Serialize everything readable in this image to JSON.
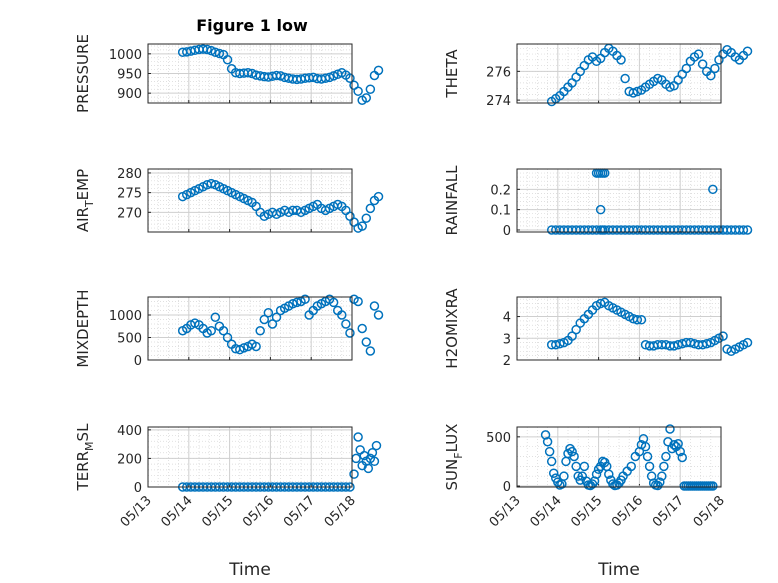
{
  "figure": {
    "title": "Figure 1 low"
  },
  "colors": {
    "marker": "#0072BD",
    "axes": "#262626",
    "grid": "#cfcfcf"
  },
  "chart_data": [
    {
      "type": "scatter",
      "xlabel": "",
      "ylabel": "PRESSURE",
      "xlim": [
        "05/13",
        "05/18"
      ],
      "ylim": [
        875,
        1025
      ],
      "yticks": [
        900,
        950,
        1000
      ],
      "x": [
        0.85,
        0.95,
        1.05,
        1.15,
        1.25,
        1.35,
        1.45,
        1.55,
        1.65,
        1.75,
        1.85,
        1.95,
        2.05,
        2.15,
        2.25,
        2.35,
        2.45,
        2.55,
        2.65,
        2.75,
        2.85,
        2.95,
        3.05,
        3.15,
        3.25,
        3.35,
        3.45,
        3.55,
        3.65,
        3.75,
        3.85,
        3.95,
        4.05,
        4.15,
        4.25,
        4.35,
        4.45,
        4.55,
        4.65,
        4.75,
        4.85,
        4.95,
        5.05,
        5.15,
        5.25,
        5.35,
        5.45,
        5.55,
        5.65
      ],
      "y": [
        1004,
        1005,
        1007,
        1009,
        1011,
        1012,
        1011,
        1008,
        1004,
        1001,
        998,
        985,
        962,
        952,
        950,
        951,
        952,
        950,
        946,
        944,
        942,
        941,
        943,
        945,
        944,
        940,
        938,
        936,
        935,
        936,
        938,
        939,
        940,
        937,
        936,
        938,
        940,
        944,
        948,
        952,
        946,
        938,
        920,
        905,
        882,
        888,
        910,
        945,
        958
      ],
      "grid": true,
      "legend": "none"
    },
    {
      "type": "scatter",
      "xlabel": "",
      "ylabel": "THETA",
      "xlim": [
        "05/13",
        "05/18"
      ],
      "ylim": [
        273.8,
        277.9
      ],
      "yticks": [
        274,
        276
      ],
      "x": [
        0.85,
        0.95,
        1.05,
        1.15,
        1.25,
        1.35,
        1.45,
        1.55,
        1.65,
        1.75,
        1.85,
        1.95,
        2.05,
        2.15,
        2.25,
        2.35,
        2.45,
        2.55,
        2.65,
        2.75,
        2.85,
        2.95,
        3.05,
        3.15,
        3.25,
        3.35,
        3.45,
        3.55,
        3.65,
        3.75,
        3.85,
        3.95,
        4.05,
        4.15,
        4.25,
        4.35,
        4.45,
        4.55,
        4.65,
        4.75,
        4.85,
        4.95,
        5.05,
        5.15,
        5.25,
        5.35,
        5.45,
        5.55,
        5.65
      ],
      "y": [
        273.9,
        274.1,
        274.3,
        274.6,
        274.9,
        275.2,
        275.6,
        276.0,
        276.4,
        276.8,
        277.0,
        276.7,
        276.9,
        277.3,
        277.6,
        277.4,
        277.1,
        276.8,
        275.5,
        274.6,
        274.5,
        274.6,
        274.7,
        274.9,
        275.1,
        275.3,
        275.5,
        275.4,
        275.1,
        274.9,
        275.0,
        275.4,
        275.8,
        276.2,
        276.7,
        277.0,
        277.2,
        276.5,
        276.0,
        275.7,
        276.2,
        276.8,
        277.2,
        277.5,
        277.3,
        277.0,
        276.8,
        277.1,
        277.4
      ],
      "grid": true,
      "legend": "none"
    },
    {
      "type": "scatter",
      "xlabel": "",
      "ylabel": "AIR_TEMP",
      "ylabel_parts": {
        "a": "AIR",
        "sub": "T",
        "b": "EMP"
      },
      "xlim": [
        "05/13",
        "05/18"
      ],
      "ylim": [
        265,
        281
      ],
      "yticks": [
        270,
        275,
        280
      ],
      "x": [
        0.85,
        0.95,
        1.05,
        1.15,
        1.25,
        1.35,
        1.45,
        1.55,
        1.65,
        1.75,
        1.85,
        1.95,
        2.05,
        2.15,
        2.25,
        2.35,
        2.45,
        2.55,
        2.65,
        2.75,
        2.85,
        2.95,
        3.05,
        3.15,
        3.25,
        3.35,
        3.45,
        3.55,
        3.65,
        3.75,
        3.85,
        3.95,
        4.05,
        4.15,
        4.25,
        4.35,
        4.45,
        4.55,
        4.65,
        4.75,
        4.85,
        4.95,
        5.05,
        5.15,
        5.25,
        5.35,
        5.45,
        5.55,
        5.65
      ],
      "y": [
        274.0,
        274.5,
        275.0,
        275.5,
        276.0,
        276.5,
        277.0,
        277.3,
        277.0,
        276.5,
        276.0,
        275.5,
        275.0,
        274.5,
        274.0,
        273.5,
        273.0,
        272.5,
        271.5,
        270.0,
        269.0,
        269.5,
        270.0,
        269.5,
        270.0,
        270.5,
        270.0,
        270.5,
        270.5,
        270.0,
        270.5,
        271.0,
        271.5,
        272.0,
        271.0,
        270.5,
        271.0,
        271.5,
        272.0,
        271.5,
        270.5,
        269.0,
        267.5,
        266.0,
        266.5,
        268.5,
        271.0,
        273.0,
        274.0
      ],
      "grid": true,
      "legend": "none"
    },
    {
      "type": "scatter",
      "xlabel": "",
      "ylabel": "RAINFALL",
      "xlim": [
        "05/13",
        "05/18"
      ],
      "ylim": [
        -0.01,
        0.3
      ],
      "yticks": [
        0,
        0.1,
        0.2
      ],
      "x": [
        0.85,
        0.95,
        1.05,
        1.15,
        1.25,
        1.35,
        1.45,
        1.55,
        1.65,
        1.75,
        1.85,
        1.95,
        2.05,
        2.15,
        2.25,
        2.35,
        2.45,
        2.55,
        2.65,
        2.75,
        2.85,
        2.95,
        3.05,
        3.15,
        3.25,
        3.35,
        3.45,
        3.55,
        3.65,
        3.75,
        3.85,
        3.95,
        4.05,
        4.15,
        4.25,
        4.35,
        4.45,
        4.55,
        4.65,
        4.75,
        4.85,
        4.95,
        5.05,
        5.15,
        5.25,
        5.35,
        5.45,
        5.55,
        5.65,
        1.95,
        2.0,
        2.05,
        2.1,
        2.15,
        2.05,
        2.1,
        4.8
      ],
      "y": [
        0,
        0,
        0,
        0,
        0,
        0,
        0,
        0,
        0,
        0,
        0,
        0,
        0,
        0,
        0,
        0,
        0,
        0,
        0,
        0,
        0,
        0,
        0,
        0,
        0,
        0,
        0,
        0,
        0,
        0,
        0,
        0,
        0,
        0,
        0,
        0,
        0,
        0,
        0,
        0,
        0,
        0,
        0,
        0,
        0,
        0,
        0,
        0,
        0,
        0.28,
        0.28,
        0.28,
        0.28,
        0.28,
        0.1,
        0,
        0.2
      ],
      "grid": true,
      "legend": "none"
    },
    {
      "type": "scatter",
      "xlabel": "",
      "ylabel": "MIXDEPTH",
      "xlim": [
        "05/13",
        "05/18"
      ],
      "ylim": [
        0,
        1400
      ],
      "yticks": [
        0,
        500,
        1000
      ],
      "x": [
        0.85,
        0.95,
        1.05,
        1.15,
        1.25,
        1.35,
        1.45,
        1.55,
        1.65,
        1.75,
        1.85,
        1.95,
        2.05,
        2.15,
        2.25,
        2.35,
        2.45,
        2.55,
        2.65,
        2.75,
        2.85,
        2.95,
        3.05,
        3.15,
        3.25,
        3.35,
        3.45,
        3.55,
        3.65,
        3.75,
        3.85,
        3.95,
        4.05,
        4.15,
        4.25,
        4.35,
        4.45,
        4.55,
        4.65,
        4.75,
        4.85,
        4.95,
        5.05,
        5.15,
        5.25,
        5.35,
        5.45,
        5.55,
        5.65
      ],
      "y": [
        650,
        700,
        780,
        820,
        780,
        700,
        600,
        650,
        950,
        750,
        650,
        500,
        350,
        250,
        230,
        270,
        300,
        350,
        300,
        650,
        900,
        1050,
        800,
        950,
        1100,
        1150,
        1200,
        1250,
        1280,
        1300,
        1350,
        1000,
        1100,
        1200,
        1250,
        1300,
        1350,
        1280,
        1100,
        1000,
        800,
        600,
        1350,
        1300,
        700,
        400,
        200,
        1200,
        1000
      ],
      "grid": true,
      "legend": "none"
    },
    {
      "type": "scatter",
      "xlabel": "",
      "ylabel": "H2OMIXRA",
      "xlim": [
        "05/13",
        "05/18"
      ],
      "ylim": [
        2,
        4.9
      ],
      "yticks": [
        2,
        3,
        4
      ],
      "x": [
        0.85,
        0.95,
        1.05,
        1.15,
        1.25,
        1.35,
        1.45,
        1.55,
        1.65,
        1.75,
        1.85,
        1.95,
        2.05,
        2.15,
        2.25,
        2.35,
        2.45,
        2.55,
        2.65,
        2.75,
        2.85,
        2.95,
        3.05,
        3.15,
        3.25,
        3.35,
        3.45,
        3.55,
        3.65,
        3.75,
        3.85,
        3.95,
        4.05,
        4.15,
        4.25,
        4.35,
        4.45,
        4.55,
        4.65,
        4.75,
        4.85,
        4.95,
        5.05,
        5.15,
        5.25,
        5.35,
        5.45,
        5.55,
        5.65
      ],
      "y": [
        2.7,
        2.7,
        2.75,
        2.8,
        2.9,
        3.1,
        3.4,
        3.7,
        3.9,
        4.1,
        4.3,
        4.5,
        4.6,
        4.65,
        4.5,
        4.4,
        4.3,
        4.2,
        4.1,
        4.0,
        3.9,
        3.85,
        3.85,
        2.7,
        2.65,
        2.65,
        2.7,
        2.7,
        2.7,
        2.65,
        2.65,
        2.7,
        2.75,
        2.8,
        2.8,
        2.75,
        2.7,
        2.7,
        2.75,
        2.8,
        2.9,
        3.0,
        3.1,
        2.5,
        2.4,
        2.5,
        2.6,
        2.7,
        2.8
      ],
      "grid": true,
      "legend": "none"
    },
    {
      "type": "scatter",
      "xlabel": "Time",
      "ylabel": "TERR_MSL",
      "ylabel_parts": {
        "a": "TERR",
        "sub": "M",
        "b": "SL"
      },
      "xlim": [
        "05/13",
        "05/18"
      ],
      "ylim": [
        0,
        420
      ],
      "yticks": [
        0,
        200,
        400
      ],
      "xticks": [
        "05/13",
        "05/14",
        "05/15",
        "05/16",
        "05/17",
        "05/18"
      ],
      "x": [
        0.85,
        0.95,
        1.05,
        1.15,
        1.25,
        1.35,
        1.45,
        1.55,
        1.65,
        1.75,
        1.85,
        1.95,
        2.05,
        2.15,
        2.25,
        2.35,
        2.45,
        2.55,
        2.65,
        2.75,
        2.85,
        2.95,
        3.05,
        3.15,
        3.25,
        3.35,
        3.45,
        3.55,
        3.65,
        3.75,
        3.85,
        3.95,
        4.05,
        4.15,
        4.25,
        4.35,
        4.45,
        4.55,
        4.65,
        4.75,
        4.85,
        4.95,
        5.05,
        5.1,
        5.15,
        5.2,
        5.25,
        5.3,
        5.35,
        5.4,
        5.45,
        5.5,
        5.55,
        5.6
      ],
      "y": [
        0,
        0,
        0,
        0,
        0,
        0,
        0,
        0,
        0,
        0,
        0,
        0,
        0,
        0,
        0,
        0,
        0,
        0,
        0,
        0,
        0,
        0,
        0,
        0,
        0,
        0,
        0,
        0,
        0,
        0,
        0,
        0,
        0,
        0,
        0,
        0,
        0,
        0,
        0,
        0,
        0,
        0,
        90,
        200,
        350,
        260,
        150,
        220,
        180,
        130,
        200,
        240,
        180,
        290
      ],
      "grid": true,
      "legend": "none"
    },
    {
      "type": "scatter",
      "xlabel": "Time",
      "ylabel": "SUN_FLUX",
      "ylabel_parts": {
        "a": "SUN",
        "sub": "F",
        "b": "LUX"
      },
      "xlim": [
        "05/13",
        "05/18"
      ],
      "ylim": [
        -10,
        600
      ],
      "yticks": [
        0,
        500
      ],
      "xticks": [
        "05/13",
        "05/14",
        "05/15",
        "05/16",
        "05/17",
        "05/18"
      ],
      "x": [
        0.7,
        0.75,
        0.8,
        0.85,
        0.9,
        0.95,
        1.0,
        1.05,
        1.1,
        1.15,
        1.2,
        1.25,
        1.3,
        1.35,
        1.4,
        1.45,
        1.5,
        1.55,
        1.6,
        1.65,
        1.7,
        1.75,
        1.8,
        1.85,
        1.9,
        1.95,
        2.0,
        2.05,
        2.1,
        2.15,
        2.2,
        2.25,
        2.3,
        2.35,
        2.4,
        2.45,
        2.5,
        2.55,
        2.6,
        2.7,
        2.8,
        2.9,
        3.0,
        3.05,
        3.1,
        3.15,
        3.2,
        3.25,
        3.3,
        3.35,
        3.4,
        3.45,
        3.5,
        3.55,
        3.6,
        3.65,
        3.7,
        3.75,
        3.8,
        3.85,
        3.9,
        3.95,
        4.0,
        4.05,
        4.1,
        4.15,
        4.2,
        4.25,
        4.3,
        4.35,
        4.4,
        4.45,
        4.5,
        4.55,
        4.6,
        4.65,
        4.7,
        4.75,
        4.8
      ],
      "y": [
        520,
        450,
        350,
        250,
        130,
        80,
        40,
        10,
        20,
        100,
        250,
        330,
        380,
        350,
        300,
        200,
        100,
        60,
        100,
        200,
        50,
        10,
        5,
        20,
        50,
        120,
        170,
        200,
        250,
        240,
        200,
        120,
        60,
        20,
        5,
        10,
        30,
        60,
        100,
        150,
        200,
        300,
        350,
        420,
        480,
        400,
        300,
        200,
        100,
        30,
        10,
        5,
        40,
        100,
        200,
        300,
        450,
        580,
        380,
        420,
        400,
        430,
        350,
        290,
        0,
        0,
        0,
        0,
        0,
        0,
        0,
        0,
        0,
        0,
        0,
        0,
        0,
        0,
        0
      ],
      "grid": true,
      "legend": "none"
    }
  ]
}
